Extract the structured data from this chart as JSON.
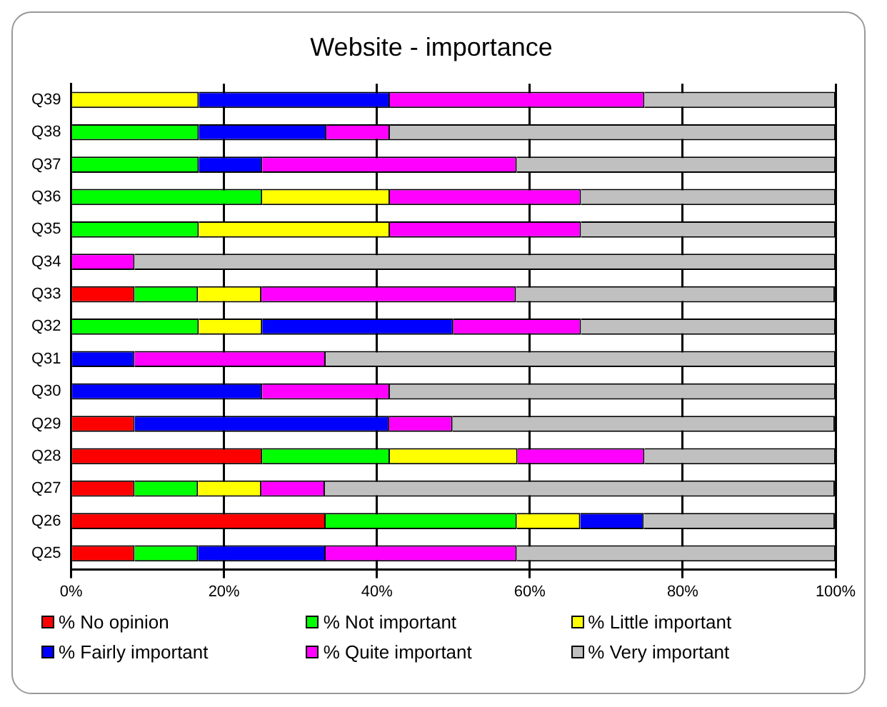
{
  "chart_data": {
    "type": "bar",
    "title": "Website - importance",
    "orientation": "horizontal",
    "stacked": true,
    "categories": [
      "Q39",
      "Q38",
      "Q37",
      "Q36",
      "Q35",
      "Q34",
      "Q33",
      "Q32",
      "Q31",
      "Q30",
      "Q29",
      "Q28",
      "Q27",
      "Q26",
      "Q25"
    ],
    "series": [
      {
        "name": "% No opinion",
        "color": "#ff0000",
        "values": [
          0,
          0,
          0,
          0,
          0,
          0,
          8.3,
          0,
          0,
          0,
          8.3,
          25,
          8.3,
          33.3,
          8.3
        ]
      },
      {
        "name": "% Not important",
        "color": "#00ff00",
        "values": [
          0,
          16.7,
          16.7,
          25,
          16.7,
          0,
          8.3,
          16.7,
          0,
          0,
          0,
          16.7,
          8.3,
          25,
          8.3
        ]
      },
      {
        "name": "% Little important",
        "color": "#ffff00",
        "values": [
          16.7,
          0,
          0,
          16.7,
          25,
          0,
          8.3,
          8.3,
          0,
          0,
          0,
          16.7,
          8.3,
          8.3,
          0
        ]
      },
      {
        "name": "% Fairly important",
        "color": "#0000ff",
        "values": [
          25,
          16.7,
          8.3,
          0,
          0,
          0,
          0,
          25,
          8.3,
          25,
          33.3,
          0,
          0,
          8.3,
          16.7
        ]
      },
      {
        "name": "% Quite important",
        "color": "#ff00ff",
        "values": [
          33.3,
          8.3,
          33.3,
          25,
          25,
          8.3,
          33.3,
          16.7,
          25,
          16.7,
          8.3,
          16.6,
          8.3,
          0,
          25
        ]
      },
      {
        "name": "% Very important",
        "color": "#c0c0c0",
        "values": [
          25,
          58.3,
          41.7,
          33.3,
          33.3,
          91.7,
          41.7,
          33.3,
          66.7,
          58.3,
          50,
          25,
          66.7,
          25,
          41.7
        ]
      }
    ],
    "xlim": [
      0,
      100
    ],
    "xticks": [
      {
        "value": 0,
        "label": "0%"
      },
      {
        "value": 20,
        "label": "20%"
      },
      {
        "value": 40,
        "label": "40%"
      },
      {
        "value": 60,
        "label": "60%"
      },
      {
        "value": 80,
        "label": "80%"
      },
      {
        "value": 100,
        "label": "100%"
      }
    ],
    "grid": "x",
    "legend": "bottom"
  }
}
